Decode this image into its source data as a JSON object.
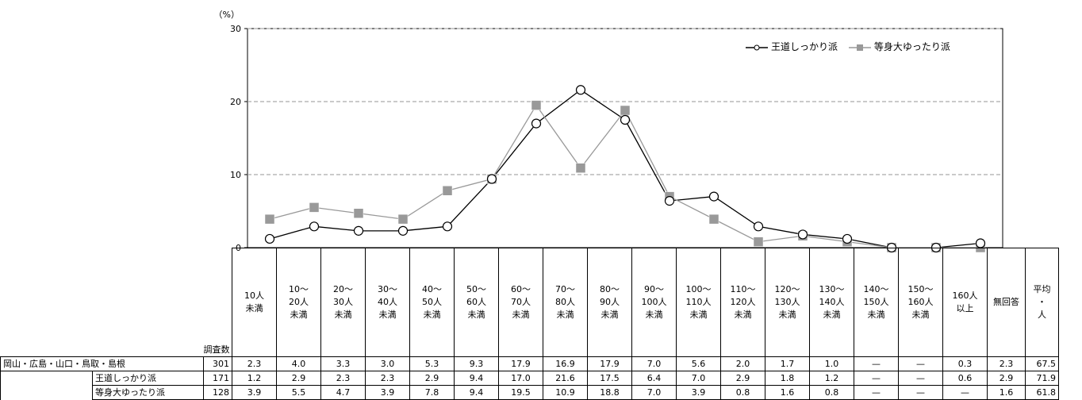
{
  "chart_data": {
    "type": "line",
    "y_unit": "（%）",
    "ylim": [
      0,
      30
    ],
    "yticks": [
      0,
      10,
      20,
      30
    ],
    "grid": "horizontal dashed",
    "legend_position": "top-right",
    "categories": [
      "10人\n未満",
      "10～\n20人\n未満",
      "20～\n30人\n未満",
      "30～\n40人\n未満",
      "40～\n50人\n未満",
      "50～\n60人\n未満",
      "60～\n70人\n未満",
      "70～\n80人\n未満",
      "80～\n90人\n未満",
      "90～\n100人\n未満",
      "100～\n110人\n未満",
      "110～\n120人\n未満",
      "120～\n130人\n未満",
      "130～\n140人\n未満",
      "140～\n150人\n未満",
      "150～\n160人\n未満",
      "160人\n以上"
    ],
    "series": [
      {
        "name": "王道しっかり派",
        "color": "#000000",
        "marker": "circle",
        "values": [
          1.2,
          2.9,
          2.3,
          2.3,
          2.9,
          9.4,
          17.0,
          21.6,
          17.5,
          6.4,
          7.0,
          2.9,
          1.8,
          1.2,
          0,
          0,
          0.6
        ]
      },
      {
        "name": "等身大ゆったり派",
        "color": "#999999",
        "marker": "square",
        "values": [
          3.9,
          5.5,
          4.7,
          3.9,
          7.8,
          9.4,
          19.5,
          10.9,
          18.8,
          7.0,
          3.9,
          0.8,
          1.6,
          0.8,
          0,
          0,
          0
        ]
      }
    ]
  },
  "table": {
    "n_header": "調査数",
    "extra_headers": [
      "無回答",
      "平均\n・\n人"
    ],
    "rows": [
      {
        "label": "岡山・広島・山口・鳥取・島根",
        "n": "301",
        "cells": [
          "2.3",
          "4.0",
          "3.3",
          "3.0",
          "5.3",
          "9.3",
          "17.9",
          "16.9",
          "17.9",
          "7.0",
          "5.6",
          "2.0",
          "1.7",
          "1.0",
          "—",
          "—",
          "0.3"
        ],
        "no_answer": "2.3",
        "average": "67.5"
      },
      {
        "label": "王道しっかり派",
        "n": "171",
        "cells": [
          "1.2",
          "2.9",
          "2.3",
          "2.3",
          "2.9",
          "9.4",
          "17.0",
          "21.6",
          "17.5",
          "6.4",
          "7.0",
          "2.9",
          "1.8",
          "1.2",
          "—",
          "—",
          "0.6"
        ],
        "no_answer": "2.9",
        "average": "71.9"
      },
      {
        "label": "等身大ゆったり派",
        "n": "128",
        "cells": [
          "3.9",
          "5.5",
          "4.7",
          "3.9",
          "7.8",
          "9.4",
          "19.5",
          "10.9",
          "18.8",
          "7.0",
          "3.9",
          "0.8",
          "1.6",
          "0.8",
          "—",
          "—",
          "—"
        ],
        "no_answer": "1.6",
        "average": "61.8"
      }
    ]
  }
}
